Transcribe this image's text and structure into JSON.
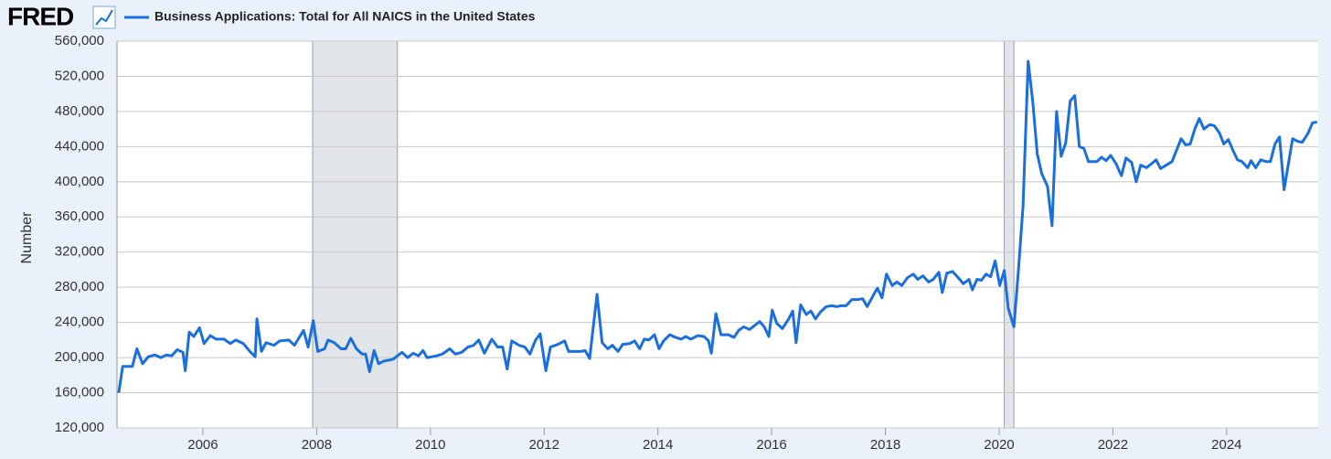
{
  "logo": "FRED",
  "chart_data": {
    "type": "line",
    "ylabel": "Number",
    "series": [
      {
        "name": "Business Applications: Total for All NAICS in the United States",
        "color": "#1a6ede",
        "x": [
          2004.52,
          2004.59,
          2004.76,
          2004.84,
          2004.94,
          2005.04,
          2005.16,
          2005.26,
          2005.36,
          2005.45,
          2005.55,
          2005.65,
          2005.69,
          2005.76,
          2005.84,
          2005.94,
          2006.02,
          2006.13,
          2006.23,
          2006.37,
          2006.48,
          2006.58,
          2006.71,
          2006.84,
          2006.92,
          2006.95,
          2007.03,
          2007.11,
          2007.25,
          2007.35,
          2007.51,
          2007.61,
          2007.77,
          2007.85,
          2007.94,
          2008.02,
          2008.14,
          2008.2,
          2008.31,
          2008.43,
          2008.51,
          2008.6,
          2008.7,
          2008.8,
          2008.86,
          2008.93,
          2009.01,
          2009.09,
          2009.18,
          2009.34,
          2009.5,
          2009.6,
          2009.7,
          2009.79,
          2009.87,
          2009.94,
          2010.11,
          2010.21,
          2010.34,
          2010.44,
          2010.55,
          2010.66,
          2010.76,
          2010.85,
          2010.95,
          2011.08,
          2011.18,
          2011.27,
          2011.35,
          2011.43,
          2011.56,
          2011.66,
          2011.75,
          2011.85,
          2011.93,
          2012.03,
          2012.11,
          2012.24,
          2012.36,
          2012.43,
          2012.53,
          2012.65,
          2012.72,
          2012.8,
          2012.93,
          2013.02,
          2013.12,
          2013.2,
          2013.3,
          2013.38,
          2013.51,
          2013.59,
          2013.68,
          2013.76,
          2013.84,
          2013.94,
          2014.02,
          2014.1,
          2014.21,
          2014.31,
          2014.41,
          2014.49,
          2014.58,
          2014.7,
          2014.81,
          2014.89,
          2014.94,
          2015.02,
          2015.11,
          2015.24,
          2015.34,
          2015.42,
          2015.51,
          2015.61,
          2015.71,
          2015.79,
          2015.87,
          2015.95,
          2016.01,
          2016.09,
          2016.19,
          2016.3,
          2016.37,
          2016.43,
          2016.51,
          2016.61,
          2016.69,
          2016.77,
          2016.86,
          2016.96,
          2017.06,
          2017.14,
          2017.23,
          2017.31,
          2017.41,
          2017.51,
          2017.6,
          2017.68,
          2017.78,
          2017.86,
          2017.94,
          2018.02,
          2018.12,
          2018.2,
          2018.29,
          2018.39,
          2018.49,
          2018.57,
          2018.66,
          2018.76,
          2018.84,
          2018.94,
          2019.0,
          2019.08,
          2019.18,
          2019.28,
          2019.37,
          2019.47,
          2019.53,
          2019.61,
          2019.69,
          2019.77,
          2019.85,
          2019.93,
          2020.01,
          2020.09,
          2020.16,
          2020.26,
          2020.34,
          2020.42,
          2020.51,
          2020.59,
          2020.67,
          2020.75,
          2020.85,
          2020.93,
          2021.01,
          2021.09,
          2021.17,
          2021.25,
          2021.33,
          2021.41,
          2021.49,
          2021.57,
          2021.72,
          2021.8,
          2021.88,
          2021.96,
          2022.06,
          2022.15,
          2022.23,
          2022.33,
          2022.41,
          2022.49,
          2022.59,
          2022.67,
          2022.76,
          2022.84,
          2022.94,
          2023.04,
          2023.12,
          2023.2,
          2023.28,
          2023.36,
          2023.44,
          2023.52,
          2023.6,
          2023.7,
          2023.78,
          2023.87,
          2023.95,
          2024.03,
          2024.11,
          2024.19,
          2024.27,
          2024.37,
          2024.43,
          2024.51,
          2024.6,
          2024.69,
          2024.77,
          2024.85,
          2024.93,
          2025.01,
          2025.16,
          2025.25,
          2025.33,
          2025.43,
          2025.51,
          2025.59
        ],
        "values": [
          160000,
          190000,
          190000,
          210000,
          193000,
          201000,
          203000,
          200000,
          203000,
          202000,
          209000,
          206000,
          185000,
          229000,
          224000,
          234000,
          216000,
          225000,
          221000,
          221000,
          216000,
          220000,
          216000,
          206000,
          201000,
          244000,
          207000,
          217000,
          214000,
          219000,
          220000,
          214000,
          231000,
          212000,
          242000,
          207000,
          210000,
          220000,
          217000,
          210000,
          210000,
          222000,
          210000,
          204000,
          204000,
          184000,
          208000,
          193000,
          196000,
          198000,
          206000,
          200000,
          205000,
          202000,
          208000,
          200000,
          202000,
          204000,
          210000,
          204000,
          206000,
          212000,
          214000,
          220000,
          205000,
          221000,
          212000,
          212000,
          187000,
          219000,
          214000,
          212000,
          204000,
          220000,
          227000,
          185000,
          212000,
          215000,
          219000,
          207000,
          207000,
          207000,
          208000,
          199000,
          272000,
          217000,
          210000,
          214000,
          207000,
          215000,
          216000,
          219000,
          210000,
          221000,
          220000,
          226000,
          210000,
          219000,
          226000,
          223000,
          221000,
          224000,
          221000,
          225000,
          224000,
          219000,
          205000,
          250000,
          226000,
          226000,
          223000,
          231000,
          235000,
          232000,
          237000,
          241000,
          235000,
          224000,
          254000,
          239000,
          233000,
          244000,
          253000,
          217000,
          260000,
          249000,
          253000,
          244000,
          252000,
          258000,
          259000,
          258000,
          259000,
          259000,
          266000,
          266000,
          267000,
          258000,
          270000,
          279000,
          268000,
          295000,
          282000,
          286000,
          282000,
          291000,
          295000,
          289000,
          293000,
          286000,
          289000,
          297000,
          274000,
          296000,
          298000,
          291000,
          284000,
          289000,
          277000,
          289000,
          288000,
          295000,
          292000,
          310000,
          282000,
          299000,
          256000,
          235000,
          300000,
          372000,
          537000,
          492000,
          432000,
          409000,
          395000,
          350000,
          480000,
          429000,
          444000,
          492000,
          498000,
          440000,
          438000,
          423000,
          423000,
          428000,
          424000,
          430000,
          420000,
          407000,
          427000,
          422000,
          400000,
          419000,
          416000,
          420000,
          425000,
          415000,
          419000,
          423000,
          436000,
          449000,
          442000,
          443000,
          460000,
          472000,
          460000,
          465000,
          464000,
          456000,
          443000,
          448000,
          436000,
          425000,
          423000,
          416000,
          424000,
          416000,
          425000,
          423000,
          423000,
          443000,
          451000,
          391000,
          449000,
          446000,
          445000,
          455000,
          467000,
          468000
        ]
      }
    ],
    "recessions": [
      [
        2007.93,
        2009.42
      ],
      [
        2020.09,
        2020.26
      ]
    ],
    "xlim": [
      2004.49,
      2025.61
    ],
    "xticks": [
      2006,
      2008,
      2010,
      2012,
      2014,
      2016,
      2018,
      2020,
      2022,
      2024
    ],
    "ylim": [
      120000,
      560000
    ],
    "yticks": [
      {
        "value": 120000,
        "label": "120,000"
      },
      {
        "value": 160000,
        "label": "160,000"
      },
      {
        "value": 200000,
        "label": "200,000"
      },
      {
        "value": 240000,
        "label": "240,000"
      },
      {
        "value": 280000,
        "label": "280,000"
      },
      {
        "value": 320000,
        "label": "320,000"
      },
      {
        "value": 360000,
        "label": "360,000"
      },
      {
        "value": 400000,
        "label": "400,000"
      },
      {
        "value": 440000,
        "label": "440,000"
      },
      {
        "value": 480000,
        "label": "480,000"
      },
      {
        "value": 520000,
        "label": "520,000"
      },
      {
        "value": 560000,
        "label": "560,000"
      }
    ],
    "grid": true
  }
}
